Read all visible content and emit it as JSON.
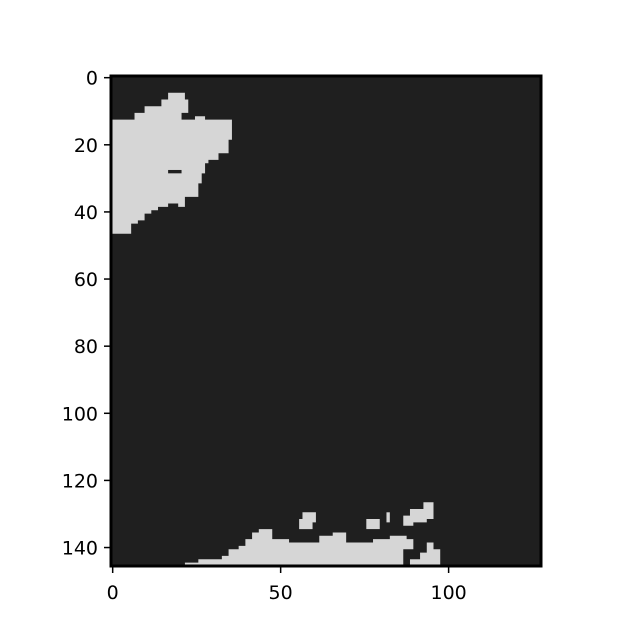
{
  "chart_data": {
    "type": "heatmap",
    "title": "",
    "xlabel": "",
    "ylabel": "",
    "colors": {
      "background": "#1f1f1f",
      "foreground": "#d6d6d6",
      "frame": "#000000"
    },
    "image_shape": [
      146,
      128
    ],
    "xlim": [
      0,
      128
    ],
    "ylim": [
      146,
      0
    ],
    "x_ticks": [
      0,
      50,
      100
    ],
    "y_ticks": [
      0,
      20,
      40,
      60,
      80,
      100,
      120,
      140
    ],
    "x_tick_labels": [
      "0",
      "50",
      "100"
    ],
    "y_tick_labels": [
      "0",
      "20",
      "40",
      "60",
      "80",
      "100",
      "120",
      "140"
    ],
    "grid": false,
    "regions": [
      {
        "name": "top-left mask",
        "polygon": [
          [
            0,
            47
          ],
          [
            0,
            13
          ],
          [
            7,
            13
          ],
          [
            7,
            11
          ],
          [
            10,
            11
          ],
          [
            10,
            9
          ],
          [
            15,
            9
          ],
          [
            15,
            7
          ],
          [
            17,
            7
          ],
          [
            17,
            5
          ],
          [
            22,
            5
          ],
          [
            22,
            7
          ],
          [
            23,
            7
          ],
          [
            23,
            11
          ],
          [
            21,
            11
          ],
          [
            21,
            13
          ],
          [
            25,
            13
          ],
          [
            25,
            12
          ],
          [
            28,
            12
          ],
          [
            28,
            13
          ],
          [
            36,
            13
          ],
          [
            36,
            19
          ],
          [
            35,
            19
          ],
          [
            35,
            23
          ],
          [
            32,
            23
          ],
          [
            32,
            25
          ],
          [
            29,
            25
          ],
          [
            29,
            26
          ],
          [
            28,
            26
          ],
          [
            28,
            29
          ],
          [
            27,
            29
          ],
          [
            27,
            32
          ],
          [
            26,
            32
          ],
          [
            26,
            36
          ],
          [
            22,
            36
          ],
          [
            22,
            39
          ],
          [
            20,
            39
          ],
          [
            20,
            38
          ],
          [
            17,
            38
          ],
          [
            17,
            39
          ],
          [
            14,
            39
          ],
          [
            14,
            40
          ],
          [
            12,
            40
          ],
          [
            12,
            41
          ],
          [
            10,
            41
          ],
          [
            10,
            43
          ],
          [
            8,
            43
          ],
          [
            8,
            44
          ],
          [
            6,
            44
          ],
          [
            6,
            47
          ]
        ]
      },
      {
        "name": "bottom mask",
        "polygon": [
          [
            22,
            146
          ],
          [
            22,
            145
          ],
          [
            26,
            145
          ],
          [
            26,
            144
          ],
          [
            33,
            144
          ],
          [
            33,
            143
          ],
          [
            35,
            143
          ],
          [
            35,
            141
          ],
          [
            38,
            141
          ],
          [
            38,
            140
          ],
          [
            40,
            140
          ],
          [
            40,
            138
          ],
          [
            42,
            138
          ],
          [
            42,
            136
          ],
          [
            44,
            136
          ],
          [
            44,
            135
          ],
          [
            48,
            135
          ],
          [
            48,
            138
          ],
          [
            53,
            138
          ],
          [
            53,
            139
          ],
          [
            62,
            139
          ],
          [
            62,
            137
          ],
          [
            66,
            137
          ],
          [
            66,
            136
          ],
          [
            70,
            136
          ],
          [
            70,
            139
          ],
          [
            78,
            139
          ],
          [
            78,
            138
          ],
          [
            83,
            138
          ],
          [
            83,
            137
          ],
          [
            88,
            137
          ],
          [
            88,
            138
          ],
          [
            90,
            138
          ],
          [
            90,
            141
          ],
          [
            87,
            141
          ],
          [
            87,
            146
          ]
        ]
      },
      {
        "name": "bottom patch 1",
        "polygon": [
          [
            56,
            135
          ],
          [
            56,
            132
          ],
          [
            57,
            132
          ],
          [
            57,
            130
          ],
          [
            61,
            130
          ],
          [
            61,
            133
          ],
          [
            60,
            133
          ],
          [
            60,
            135
          ]
        ]
      },
      {
        "name": "bottom patch 2",
        "polygon": [
          [
            76,
            135
          ],
          [
            76,
            132
          ],
          [
            80,
            132
          ],
          [
            80,
            135
          ]
        ]
      },
      {
        "name": "bottom patch 3",
        "polygon": [
          [
            82,
            133
          ],
          [
            82,
            130
          ],
          [
            83,
            130
          ],
          [
            83,
            133
          ]
        ]
      },
      {
        "name": "bottom patch 4",
        "polygon": [
          [
            87,
            134
          ],
          [
            87,
            131
          ],
          [
            89,
            131
          ],
          [
            89,
            129
          ],
          [
            93,
            129
          ],
          [
            93,
            127
          ],
          [
            96,
            127
          ],
          [
            96,
            132
          ],
          [
            94,
            132
          ],
          [
            94,
            133
          ],
          [
            90,
            133
          ],
          [
            90,
            134
          ]
        ]
      },
      {
        "name": "bottom patch 5",
        "polygon": [
          [
            89,
            146
          ],
          [
            89,
            144
          ],
          [
            92,
            144
          ],
          [
            92,
            142
          ],
          [
            94,
            142
          ],
          [
            94,
            139
          ],
          [
            96,
            139
          ],
          [
            96,
            141
          ],
          [
            98,
            141
          ],
          [
            98,
            146
          ]
        ]
      }
    ],
    "holes": [
      {
        "name": "dark mark in top-left mask",
        "polygon": [
          [
            17,
            29
          ],
          [
            17,
            28
          ],
          [
            21,
            28
          ],
          [
            21,
            29
          ]
        ]
      }
    ]
  }
}
